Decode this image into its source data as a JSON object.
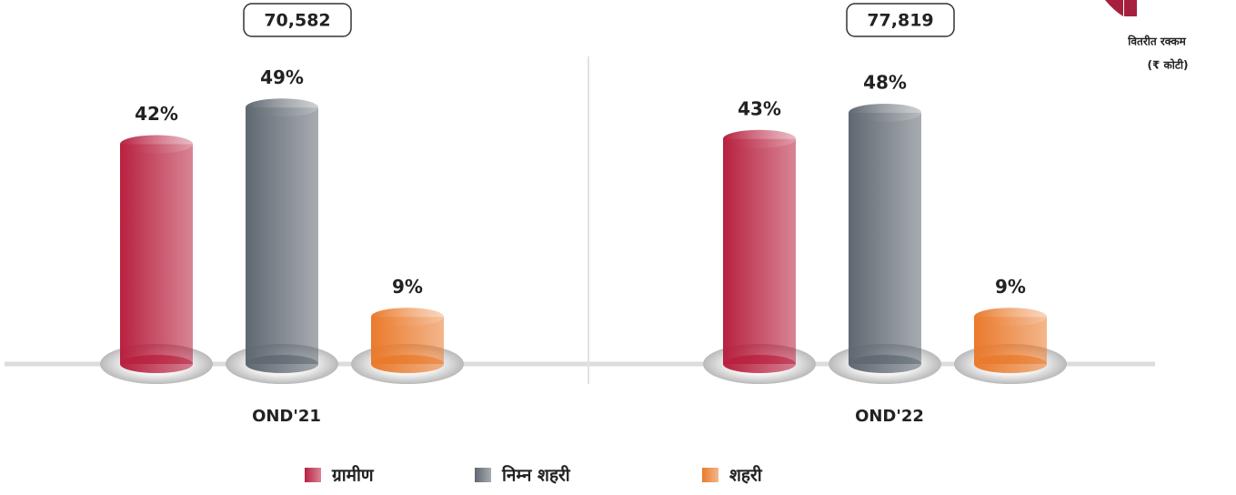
{
  "chart_data": {
    "type": "bar",
    "categories": [
      "OND'21",
      "OND'22"
    ],
    "annotations": [
      "70,582",
      "77,819"
    ],
    "side_note": [
      "वितरीत रक्कम",
      "(₹ कोटी)"
    ],
    "series": [
      {
        "name": "ग्रामीण",
        "color": "#b8213f",
        "values": [
          42,
          43
        ],
        "value_labels": [
          "42%",
          "43%"
        ]
      },
      {
        "name": "निम्न शहरी",
        "color": "#5f6871",
        "values": [
          49,
          48
        ],
        "value_labels": [
          "49%",
          "48%"
        ]
      },
      {
        "name": "शहरी",
        "color": "#ea7a2c",
        "values": [
          9,
          9
        ],
        "value_labels": [
          "9%",
          "9%"
        ]
      }
    ],
    "legend": "bottom"
  }
}
